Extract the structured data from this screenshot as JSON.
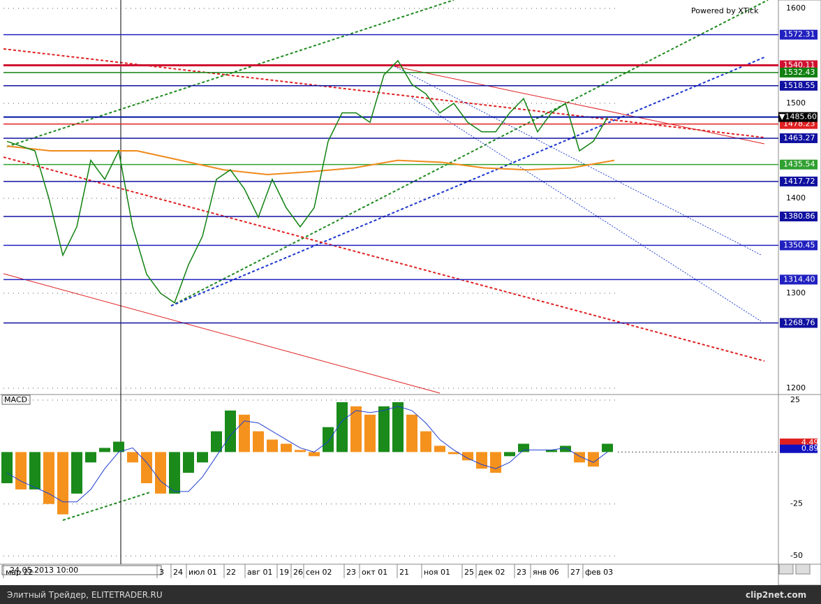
{
  "header": {
    "powered": "Powered by XTick",
    "macd_title": "MACD",
    "cursor_time": "24.05.2013 10:00"
  },
  "chart_data": {
    "type": "line",
    "price": [
      1460,
      1455,
      1450,
      1400,
      1340,
      1370,
      1440,
      1420,
      1450,
      1370,
      1320,
      1300,
      1290,
      1330,
      1360,
      1420,
      1430,
      1410,
      1380,
      1420,
      1390,
      1370,
      1390,
      1460,
      1490,
      1490,
      1480,
      1530,
      1545,
      1520,
      1510,
      1490,
      1500,
      1480,
      1470,
      1470,
      1490,
      1505,
      1470,
      1490,
      1500,
      1450,
      1460,
      1485
    ],
    "price_color": "#108010",
    "ma": [
      1455,
      1450,
      1450,
      1450,
      1440,
      1430,
      1425,
      1428,
      1432,
      1440,
      1438,
      1432,
      1430,
      1432,
      1440
    ],
    "ma_color": "#f08a1c",
    "ylim": [
      1200,
      1600
    ],
    "yticks": [
      1600,
      1500,
      1400,
      1300,
      1200
    ],
    "levels": [
      1572.31,
      1540.11,
      1532.43,
      1518.55,
      1478.23,
      1463.27,
      1435.54,
      1417.72,
      1380.86,
      1350.45,
      1314.4,
      1268.76
    ],
    "level_labels": [
      "1572.31",
      "1540.11",
      "1532.43",
      "1518.55",
      "1478.23",
      "1463.27",
      "1435.54",
      "1417.72",
      "1380.86",
      "1350.45",
      "1314.40",
      "1268.76"
    ],
    "level_colors": [
      "#2020c0",
      "#d01030",
      "#108010",
      "#1010a0",
      "#e02020",
      "#1010a0",
      "#30a030",
      "#1010a0",
      "#1010a0",
      "#2020c0",
      "#2020c0",
      "#1010a0"
    ],
    "last_price": {
      "value": 1485.6,
      "label": "▼1485.60"
    },
    "categories": [
      "мар 22",
      "3",
      "24",
      "июл 01",
      "22",
      "авг 01",
      "19",
      "26",
      "сен 02",
      "23",
      "окт 01",
      "21",
      "ноя 01",
      "25",
      "дек 02",
      "23",
      "янв 06",
      "27",
      "фев 03"
    ],
    "macd": [
      -15,
      -18,
      -18,
      -25,
      -30,
      -20,
      -5,
      2,
      5,
      -5,
      -15,
      -20,
      -20,
      -10,
      -5,
      10,
      20,
      18,
      10,
      6,
      4,
      1,
      -2,
      12,
      24,
      22,
      18,
      22,
      24,
      18,
      10,
      3,
      -1,
      -4,
      -8,
      -10,
      -2,
      4,
      0,
      1,
      3,
      -5,
      -7,
      4
    ],
    "signal": [
      -10,
      -14,
      -17,
      -20,
      -24,
      -24,
      -18,
      -8,
      0,
      2,
      -5,
      -14,
      -19,
      -19,
      -12,
      -2,
      8,
      15,
      14,
      10,
      6,
      2,
      0,
      5,
      15,
      20,
      19,
      20,
      22,
      20,
      14,
      6,
      1,
      -3,
      -6,
      -8,
      -5,
      1,
      1,
      1,
      2,
      -2,
      -5,
      0
    ],
    "macd_up_color": "#1a8a1a",
    "macd_down_color": "#f5921e",
    "signal_color": "#2040d0",
    "macd_ylim": [
      -54,
      27.7
    ],
    "macd_yticks": [
      25,
      -25,
      -50
    ],
    "macd_values": [
      4.49,
      0.89
    ],
    "macd_value_colors": [
      "#e02020",
      "#1010c0"
    ]
  },
  "footer": {
    "site": "Элитный Трейдер, ELITETRADER.RU",
    "brand": "clip2net.com"
  }
}
